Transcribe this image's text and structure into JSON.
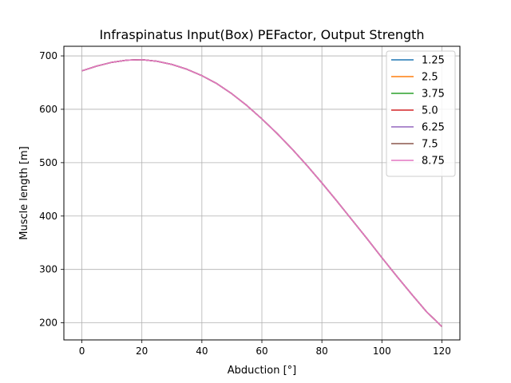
{
  "chart_data": {
    "type": "line",
    "title": "Infraspinatus Input(Box) PEFactor, Output Strength",
    "xlabel": "Abduction [°]",
    "ylabel": "Muscle length [m]",
    "xlim": [
      -6,
      126
    ],
    "ylim": [
      168,
      718
    ],
    "xticks": [
      0,
      20,
      40,
      60,
      80,
      100,
      120
    ],
    "yticks": [
      200,
      300,
      400,
      500,
      600,
      700
    ],
    "grid": true,
    "legend_position": "top-right",
    "x": [
      0,
      5,
      10,
      15,
      20,
      25,
      30,
      35,
      40,
      45,
      50,
      55,
      60,
      65,
      70,
      75,
      80,
      85,
      90,
      95,
      100,
      105,
      110,
      115,
      120
    ],
    "series_values": [
      672,
      681,
      688,
      692,
      693,
      690,
      684,
      675,
      663,
      648,
      629,
      607,
      582,
      555,
      526,
      495,
      462,
      428,
      393,
      358,
      322,
      287,
      253,
      220,
      193
    ],
    "series": [
      {
        "name": "1.25",
        "color": "#1f77b4"
      },
      {
        "name": "2.5",
        "color": "#ff7f0e"
      },
      {
        "name": "3.75",
        "color": "#2ca02c"
      },
      {
        "name": "5.0",
        "color": "#d62728"
      },
      {
        "name": "6.25",
        "color": "#9467bd"
      },
      {
        "name": "7.5",
        "color": "#8c564b"
      },
      {
        "name": "8.75",
        "color": "#e377c2"
      }
    ]
  }
}
